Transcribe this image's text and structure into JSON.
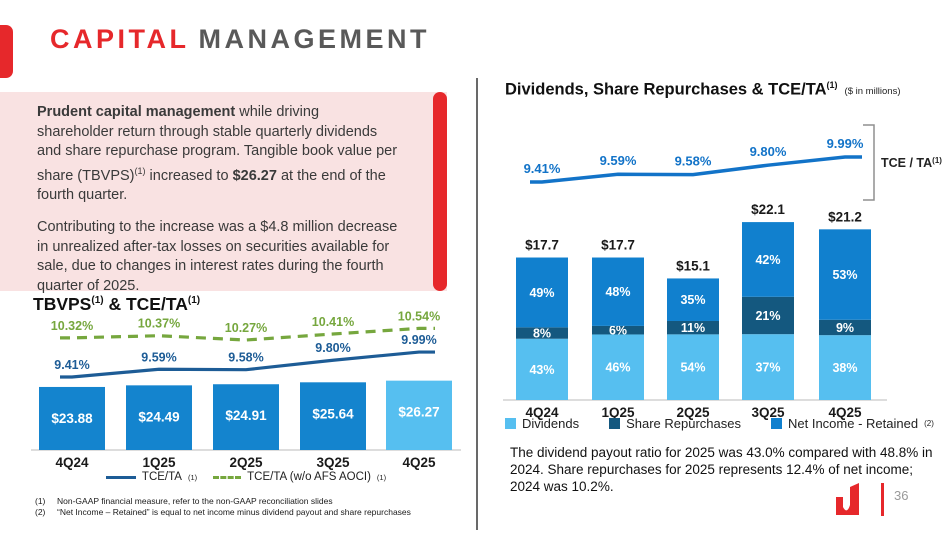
{
  "colors": {
    "accent-red": "#e6282b",
    "title-gray": "#595959",
    "pink-bg": "#f9e2e2",
    "bar-blue": "#1484ce",
    "light-blue": "#56bff0",
    "navy-blue": "#14587f",
    "mid-blue": "#1180ce",
    "line-blue-left": "#1d5c96",
    "line-blue-right": "#1273c8",
    "green": "#76a73e"
  },
  "header": {
    "title_accent": "CAPITAL",
    "title_rest": "MANAGEMENT"
  },
  "callout": {
    "p1": [
      {
        "t": "Prudent capital management",
        "b": true
      },
      {
        "t": " while driving shareholder return through stable quarterly dividends and share repurchase program. Tangible book value per share (TBVPS)"
      },
      {
        "t": "(1)",
        "sup": true
      },
      {
        "t": " increased to "
      },
      {
        "t": "$26.27",
        "b": true
      },
      {
        "t": " at the end of the fourth quarter."
      }
    ],
    "p2": "Contributing to the increase was a $4.8 million decrease in unrealized after-tax losses on securities available for sale, due to changes in interest rates during the fourth quarter of 2025."
  },
  "chart_data": [
    {
      "id": "tbvps",
      "type": "bar",
      "title_parts": [
        "TBVPS",
        "(1)",
        " & TCE/TA",
        "(1)"
      ],
      "categories": [
        "4Q24",
        "1Q25",
        "2Q25",
        "3Q25",
        "4Q25"
      ],
      "series": [
        {
          "name": "TBVPS",
          "type": "bar",
          "values": [
            23.88,
            24.49,
            24.91,
            25.64,
            26.27
          ],
          "labels": [
            "$23.88",
            "$24.49",
            "$24.91",
            "$25.64",
            "$26.27"
          ],
          "colors": [
            "#1484ce",
            "#1484ce",
            "#1484ce",
            "#1484ce",
            "#56bff0"
          ]
        },
        {
          "name": "TCE/TA",
          "type": "line",
          "style": "solid",
          "color": "#1d5c96",
          "values": [
            9.41,
            9.59,
            9.58,
            9.8,
            9.99
          ],
          "labels": [
            "9.41%",
            "9.59%",
            "9.58%",
            "9.80%",
            "9.99%"
          ]
        },
        {
          "name": "TCE/TA (w/o AFS AOCI)",
          "type": "line",
          "style": "dashed",
          "color": "#76a73e",
          "values": [
            10.32,
            10.37,
            10.27,
            10.41,
            10.54
          ],
          "labels": [
            "10.32%",
            "10.37%",
            "10.27%",
            "10.41%",
            "10.54%"
          ]
        }
      ],
      "legend": [
        {
          "label": "TCE/TA",
          "sup": "(1)",
          "swatch": "line-solid",
          "color": "#1d5c96"
        },
        {
          "label": "TCE/TA (w/o AFS AOCI)",
          "sup": "(1)",
          "swatch": "line-dashed",
          "color": "#76a73e"
        }
      ],
      "ylim_bar": [
        0,
        53
      ],
      "ylim_line": [
        9.0,
        11.0
      ]
    },
    {
      "id": "dividends",
      "type": "stacked-bar",
      "title": "Dividends, Share Repurchases & TCE/TA",
      "title_sup": "(1)",
      "subtitle": "($ in millions)",
      "categories": [
        "4Q24",
        "1Q25",
        "2Q25",
        "3Q25",
        "4Q25"
      ],
      "totals": [
        17.7,
        17.7,
        15.1,
        22.1,
        21.2
      ],
      "total_labels": [
        "$17.7",
        "$17.7",
        "$15.1",
        "$22.1",
        "$21.2"
      ],
      "series": [
        {
          "name": "Dividends",
          "color": "#56bff0",
          "pct": [
            43,
            46,
            54,
            37,
            38
          ],
          "labels": [
            "43%",
            "46%",
            "54%",
            "37%",
            "38%"
          ]
        },
        {
          "name": "Share Repurchases",
          "color": "#14587f",
          "pct": [
            8,
            6,
            11,
            21,
            9
          ],
          "labels": [
            "8%",
            "6%",
            "11%",
            "21%",
            "9%"
          ]
        },
        {
          "name": "Net Income - Retained",
          "color": "#1180ce",
          "pct": [
            49,
            48,
            35,
            42,
            53
          ],
          "labels": [
            "49%",
            "48%",
            "35%",
            "42%",
            "53%"
          ]
        }
      ],
      "line": {
        "name": "TCE / TA",
        "sup": "(1)",
        "color": "#1273c8",
        "values": [
          9.41,
          9.59,
          9.58,
          9.8,
          9.99
        ],
        "labels": [
          "9.41%",
          "9.59%",
          "9.58%",
          "9.80%",
          "9.99%"
        ]
      },
      "bracket_label": "TCE / TA",
      "bracket_sup": "(1)",
      "legend": [
        {
          "label": "Dividends",
          "color": "#56bff0"
        },
        {
          "label": "Share Repurchases",
          "color": "#14587f"
        },
        {
          "label": "Net Income - Retained",
          "sup": "(2)",
          "color": "#1180ce"
        }
      ]
    }
  ],
  "footnotes": [
    {
      "num": "(1)",
      "text": "Non-GAAP financial measure, refer to the non-GAAP reconciliation slides"
    },
    {
      "num": "(2)",
      "text": "“Net Income – Retained” is equal to net income minus dividend payout and share repurchases"
    }
  ],
  "right_note": "The dividend payout ratio for 2025 was 43.0% compared with 48.8% in 2024.  Share repurchases for 2025 represents 12.4% of net income; 2024 was 10.2%.",
  "footer": {
    "page_number": "36"
  }
}
